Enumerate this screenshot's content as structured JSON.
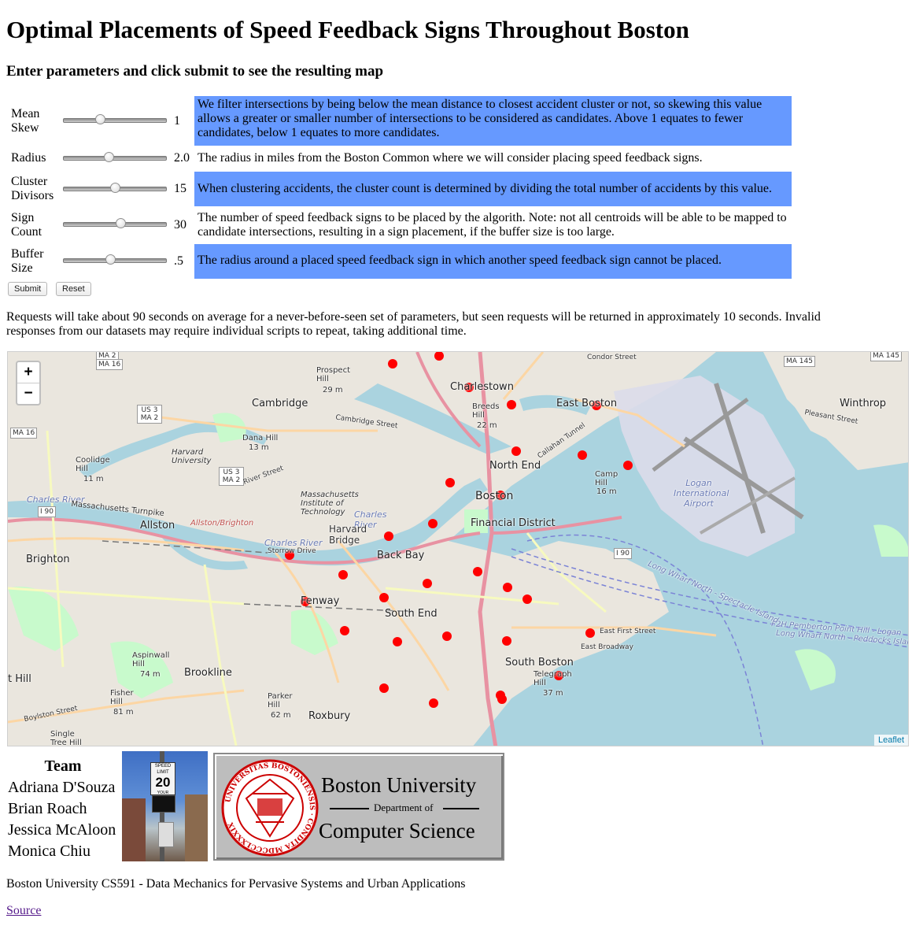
{
  "page": {
    "title": "Optimal Placements of Speed Feedback Signs Throughout Boston",
    "subtitle": "Enter parameters and click submit to see the resulting map"
  },
  "params": [
    {
      "label": "Mean Skew",
      "value": "1",
      "level": 0.35,
      "highlight": true,
      "description": "We filter intersections by being below the mean distance to closest accident cluster or not, so skewing this value allows a greater or smaller number of intersections to be considered as candidates. Above 1 equates to fewer candidates, below 1 equates to more candidates."
    },
    {
      "label": "Radius",
      "value": "2.0",
      "level": 0.44,
      "highlight": false,
      "description": "The radius in miles from the Boston Common where we will consider placing speed feedback signs."
    },
    {
      "label": "Cluster Divisors",
      "value": "15",
      "level": 0.5,
      "highlight": true,
      "description": "When clustering accidents, the cluster count is determined by dividing the total number of accidents by this value."
    },
    {
      "label": "Sign Count",
      "value": "30",
      "level": 0.55,
      "highlight": false,
      "description": "The number of speed feedback signs to be placed by the algorith. Note: not all centroids will be able to be mapped to candidate intersections, resulting in a sign placement, if the buffer size is too large."
    },
    {
      "label": "Buffer Size",
      "value": ".5",
      "level": 0.45,
      "highlight": true,
      "description": "The radius around a placed speed feedback sign in which another speed feedback sign cannot be placed."
    }
  ],
  "buttons": {
    "submit": "Submit",
    "reset": "Reset"
  },
  "note": "Requests will take about 90 seconds on average for a never-before-seen set of parameters, but seen requests will be returned in approximately 10 seconds. Invalid responses from our datasets may require individual scripts to repeat, taking additional time.",
  "map": {
    "zoom_in": "+",
    "zoom_out": "−",
    "attribution": "Leaflet",
    "labels": {
      "cambridge": "Cambridge",
      "charlestown": "Charlestown",
      "east_boston": "East Boston",
      "winthrop": "Winthrop",
      "north_end": "North End",
      "boston": "Boston",
      "financial_district": "Financial District",
      "back_bay": "Back Bay",
      "allston": "Allston",
      "brighton": "Brighton",
      "fenway": "Fenway",
      "south_end": "South End",
      "south_boston": "South Boston",
      "brookline": "Brookline",
      "roxbury": "Roxbury",
      "logan": "Logan International Airport",
      "harvard_bridge": "Harvard Bridge",
      "charles_river": "Charles River",
      "mit": "Massachusetts Institute of Technology",
      "harvard_univ": "Harvard University",
      "prospect_hill": "Prospect Hill",
      "prospect_hill_elev": "29 m",
      "dana_hill": "Dana Hill",
      "dana_hill_elev": "13 m",
      "coolidge_hill": "Coolidge Hill",
      "coolidge_hill_elev": "11 m",
      "camp_hill": "Camp Hill",
      "camp_hill_elev": "16 m",
      "breeds_hill": "Breeds Hill",
      "breeds_hill_elev": "22 m",
      "aspinwall_hill": "Aspinwall Hill",
      "aspinwall_hill_elev": "74 m",
      "fisher_hill": "Fisher Hill",
      "fisher_hill_elev": "81 m",
      "parker_hill": "Parker Hill",
      "parker_hill_elev": "62 m",
      "telegraph_hill": "Telegraph Hill",
      "telegraph_hill_elev": "37 m",
      "single_tree_hill": "Single Tree Hill",
      "mass_pike": "Massachusetts Turnpike",
      "allston_brighton": "Allston/Brighton",
      "storrow_drive": "Storrow Drive",
      "cambridge_street": "Cambridge Street",
      "river_street": "River Street",
      "condor_street": "Condor Street",
      "east_first_street": "East First Street",
      "east_broadway": "East Broadway",
      "pleasant_street": "Pleasant Street",
      "boylston_street": "Boylston Street",
      "callahan_tunnel": "Callahan Tunnel",
      "ferry_1": "F2H Pemberton Point Hill - Logan",
      "ferry_2": "Long Wharf North - Peddocks Island",
      "ferry_3": "Long Wharf North - Spectacle Island",
      "ma2": "MA 2",
      "ma16": "MA 16",
      "us3_ma2": "US 3 MA 2",
      "i90": "I 90",
      "ma145": "MA 145",
      "t_hill": "t Hill"
    },
    "sign_markers": 30
  },
  "team": {
    "title": "Team",
    "members": [
      "Adriana D'Souza",
      "Brian Roach",
      "Jessica McAloon",
      "Monica Chiu"
    ]
  },
  "sign_photo": {
    "speed_limit": "20",
    "top_text": "SPEED LIMIT",
    "bottom_text": "YOUR SPEED"
  },
  "logo": {
    "line1": "Boston University",
    "line2": "Department of",
    "line3": "Computer Science",
    "seal_text": "UNIVERSITAS BOSTONIENSIS · CONDITA MDCCCLXXXIX"
  },
  "footer": "Boston University CS591 - Data Mechanics for Pervasive Systems and Urban Applications",
  "source_link": "Source",
  "colors": {
    "highlight": "#6699ff",
    "marker": "#ff0000",
    "water": "#aad3df",
    "land": "#eae6de",
    "link": "#551a8b"
  }
}
